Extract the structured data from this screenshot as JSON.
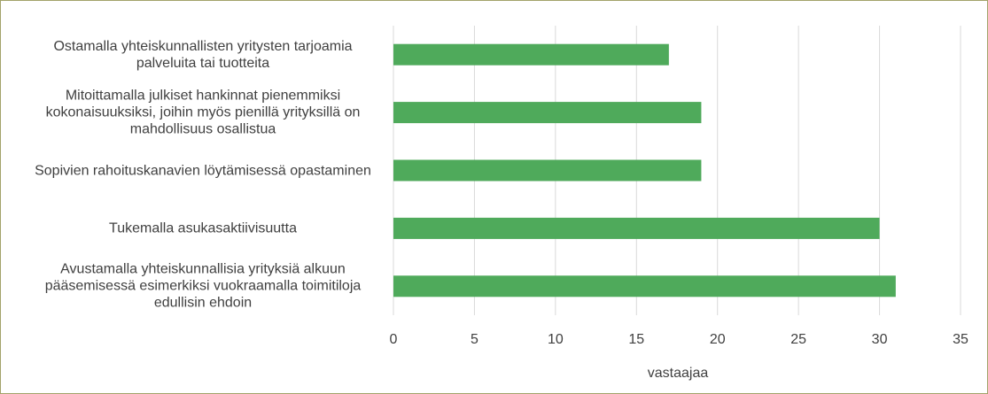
{
  "chart_data": {
    "type": "bar",
    "orientation": "horizontal",
    "categories": [
      "Ostamalla yhteiskunnallisten yritysten tarjoamia palveluita tai tuotteita",
      "Mitoittamalla julkiset hankinnat pienemmiksi kokonaisuuksiksi, joihin myös pienillä yrityksillä on mahdollisuus osallistua",
      "Sopivien rahoituskanavien löytämisessä opastaminen",
      "Tukemalla asukasaktiivisuutta",
      "Avustamalla yhteiskunnallisia yrityksiä alkuun pääsemisessä esimerkiksi vuokraamalla toimitiloja edullisin ehdoin"
    ],
    "values": [
      17,
      19,
      19,
      30,
      31
    ],
    "color": "#4faa5b",
    "xlabel": "vastaajaa",
    "xlim": [
      0,
      35
    ],
    "xticks": [
      0,
      5,
      10,
      15,
      20,
      25,
      30,
      35
    ],
    "grid": true
  }
}
